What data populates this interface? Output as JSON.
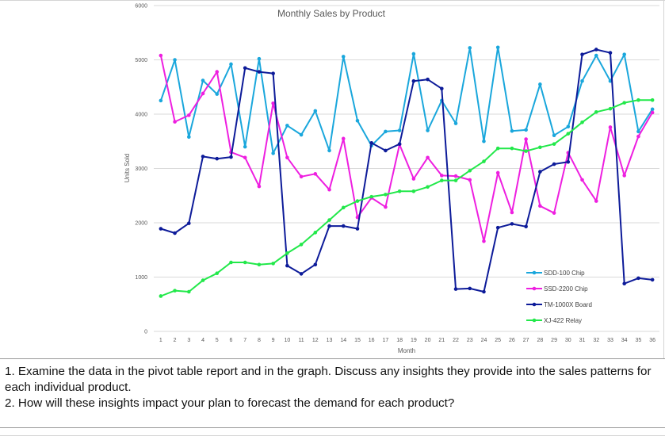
{
  "chart_data": {
    "type": "line",
    "title": "Monthly Sales by Product",
    "xlabel": "Month",
    "ylabel": "Units Sold",
    "ylim": [
      0,
      6000
    ],
    "yticks": [
      0,
      1000,
      2000,
      3000,
      4000,
      5000,
      6000
    ],
    "yticklabels": [
      "0",
      "1000",
      "2000",
      "3000",
      "4000",
      "5000",
      "6000"
    ],
    "categories": [
      "1",
      "2",
      "3",
      "4",
      "5",
      "6",
      "7",
      "8",
      "9",
      "10",
      "11",
      "12",
      "13",
      "14",
      "15",
      "16",
      "17",
      "18",
      "19",
      "20",
      "21",
      "22",
      "23",
      "24",
      "25",
      "26",
      "27",
      "28",
      "29",
      "30",
      "31",
      "32",
      "33",
      "34",
      "35",
      "36"
    ],
    "grid": true,
    "legend_position": "bottom-right",
    "series": [
      {
        "name": "SDD-100 Chip",
        "color": "#1aa7dc",
        "values": [
          4250,
          5000,
          3580,
          4620,
          4370,
          4920,
          3400,
          5020,
          3280,
          3790,
          3620,
          4060,
          3330,
          5060,
          3880,
          3420,
          3680,
          3700,
          5110,
          3700,
          4250,
          3830,
          5220,
          3500,
          5230,
          3690,
          3710,
          4550,
          3610,
          3770,
          4610,
          5080,
          4610,
          5100,
          3680,
          4090
        ]
      },
      {
        "name": "SSD-2200 Chip",
        "color": "#ee1fe0",
        "values": [
          5080,
          3860,
          3980,
          4380,
          4780,
          3300,
          3200,
          2670,
          4200,
          3200,
          2850,
          2900,
          2610,
          3550,
          2100,
          2460,
          2290,
          3440,
          2810,
          3200,
          2870,
          2860,
          2790,
          1660,
          2920,
          2190,
          3540,
          2310,
          2180,
          3290,
          2790,
          2400,
          3760,
          2870,
          3590,
          4030
        ]
      },
      {
        "name": "TM-1000X Board",
        "color": "#0d1b99",
        "values": [
          1890,
          1810,
          1990,
          3220,
          3180,
          3210,
          4850,
          4780,
          4750,
          1210,
          1060,
          1230,
          1940,
          1940,
          1890,
          3470,
          3330,
          3450,
          4610,
          4640,
          4470,
          780,
          790,
          730,
          1910,
          1980,
          1930,
          2940,
          3080,
          3120,
          5100,
          5190,
          5130,
          880,
          980,
          950
        ]
      },
      {
        "name": "XJ-422 Relay",
        "color": "#22e84a",
        "values": [
          650,
          750,
          730,
          940,
          1070,
          1270,
          1270,
          1230,
          1250,
          1440,
          1600,
          1820,
          2050,
          2280,
          2400,
          2480,
          2520,
          2580,
          2580,
          2660,
          2780,
          2780,
          2960,
          3130,
          3370,
          3370,
          3320,
          3390,
          3450,
          3640,
          3850,
          4040,
          4100,
          4210,
          4260,
          4260
        ]
      }
    ]
  },
  "questions": {
    "q1": "1. Examine the data in the pivot table report and in the graph. Discuss any insights they provide into the sales patterns for each individual product.",
    "q2": "2. How will these insights impact your plan to forecast the demand for each product?"
  }
}
